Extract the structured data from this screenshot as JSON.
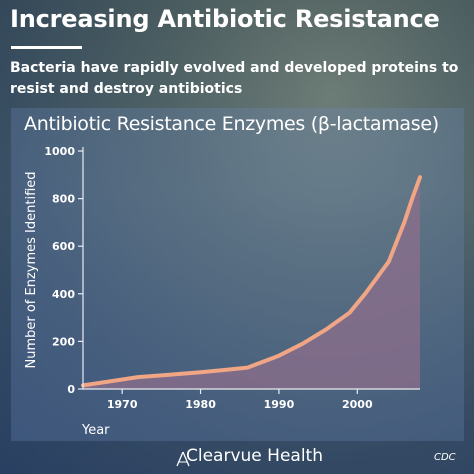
{
  "header": {
    "title": "Increasing Antibiotic Resistance",
    "subtitle": "Bacteria have rapidly evolved and developed proteins to resist and destroy antibiotics"
  },
  "footer": {
    "brand": "Clearvue Health",
    "source": "CDC"
  },
  "colors": {
    "line": "#f0a585",
    "area": "#8d6f8c",
    "axis": "#e8ecf2",
    "text": "#ffffff"
  },
  "chart_data": {
    "type": "area",
    "title": "Antibiotic Resistance Enzymes (β-lactamase)",
    "xlabel": "Year",
    "ylabel": "Number of Enzymes Identified",
    "xlim": [
      1965,
      2008
    ],
    "ylim": [
      0,
      1000
    ],
    "xticks": [
      1970,
      1980,
      1990,
      2000
    ],
    "yticks": [
      0,
      200,
      400,
      600,
      800,
      1000
    ],
    "grid": false,
    "legend": "none",
    "series": [
      {
        "x": [
          1965,
          1968,
          1972,
          1976,
          1980,
          1983,
          1986,
          1990,
          1993,
          1996,
          1999,
          2001,
          2004,
          2006,
          2007,
          2008
        ],
        "values": [
          15,
          30,
          50,
          60,
          70,
          80,
          90,
          140,
          190,
          250,
          320,
          400,
          535,
          700,
          800,
          890
        ]
      }
    ]
  }
}
